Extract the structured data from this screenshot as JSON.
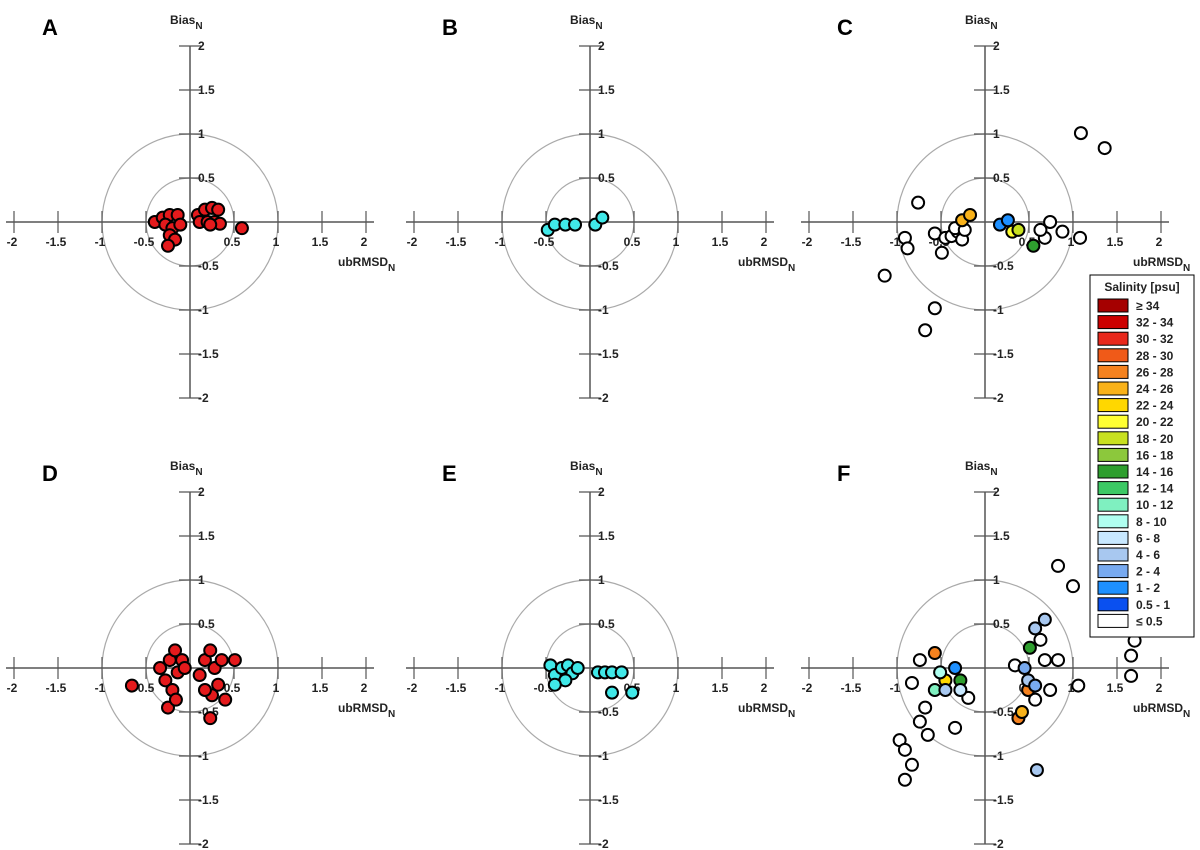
{
  "chart_data": [
    {
      "type": "scatter",
      "label": "A",
      "xlabel": "ubRMSD",
      "xlabel_sub": "N",
      "ylabel": "Bias",
      "ylabel_sub": "N",
      "xlim": [
        -2,
        2
      ],
      "ylim": [
        -2,
        2
      ],
      "xticks": [
        -2,
        -1.5,
        -1,
        -0.5,
        0.5,
        1,
        1.5,
        2
      ],
      "yticks": [
        2,
        1.5,
        1,
        0.5,
        -0.5,
        -1,
        -1.5,
        -2
      ],
      "circles": [
        0.5,
        1
      ],
      "series": [
        {
          "color": "#e41a1c",
          "x": [
            -0.4,
            -0.31,
            -0.23,
            -0.14,
            -0.28,
            -0.2,
            -0.11,
            -0.23,
            -0.17,
            -0.25,
            0.09,
            0.17,
            0.25,
            0.32,
            0.11,
            0.2,
            0.28,
            0.34,
            0.23,
            0.59
          ],
          "y": [
            0,
            0.05,
            0.08,
            0.08,
            -0.03,
            -0.07,
            -0.03,
            -0.15,
            -0.2,
            -0.27,
            0.08,
            0.14,
            0.16,
            0.14,
            0,
            0,
            0,
            -0.02,
            -0.03,
            -0.07
          ]
        }
      ]
    },
    {
      "type": "scatter",
      "label": "B",
      "xlabel": "ubRMSD",
      "xlabel_sub": "N",
      "ylabel": "Bias",
      "ylabel_sub": "N",
      "xlim": [
        -2,
        2
      ],
      "ylim": [
        -2,
        2
      ],
      "xticks": [
        -2,
        -1.5,
        -1,
        -0.5,
        0.5,
        1,
        1.5,
        2
      ],
      "yticks": [
        2,
        1.5,
        1,
        0.5,
        -0.5,
        -1,
        -1.5,
        -2
      ],
      "circles": [
        0.5,
        1
      ],
      "series": [
        {
          "color": "#40e8e8",
          "x": [
            -0.48,
            -0.4,
            -0.28,
            -0.17,
            0.06,
            0.14
          ],
          "y": [
            -0.09,
            -0.03,
            -0.03,
            -0.03,
            -0.03,
            0.05
          ]
        }
      ]
    },
    {
      "type": "scatter",
      "label": "C",
      "xlabel": "ubRMSD",
      "xlabel_sub": "N",
      "ylabel": "Bias",
      "ylabel_sub": "N",
      "xlim": [
        -2,
        2
      ],
      "ylim": [
        -2,
        2
      ],
      "xticks": [
        -2,
        -1.5,
        -1,
        -0.5,
        0.5,
        1,
        1.5,
        2
      ],
      "yticks": [
        2,
        1.5,
        1,
        0.5,
        -0.5,
        -1,
        -1.5,
        -2
      ],
      "circles": [
        0.5,
        1
      ],
      "series": [
        {
          "color": "#ffffff",
          "x": [
            1.09,
            1.36,
            -0.76,
            -0.91,
            -0.88,
            -1.14,
            -0.57,
            -0.68,
            -0.49,
            -0.57,
            -0.45,
            -0.38,
            -0.31,
            -0.26,
            -0.34,
            -0.23,
            0.74,
            0.88,
            0.68,
            1.08,
            0.63
          ],
          "y": [
            1.01,
            0.84,
            0.22,
            -0.18,
            -0.3,
            -0.61,
            -0.98,
            -1.23,
            -0.35,
            -0.13,
            -0.18,
            -0.16,
            -0.11,
            -0.2,
            -0.07,
            -0.09,
            0,
            -0.11,
            -0.18,
            -0.18,
            -0.09
          ]
        },
        {
          "color": "#f9b21a",
          "x": [
            -0.26,
            -0.17
          ],
          "y": [
            0.02,
            0.08
          ]
        },
        {
          "color": "#1e90ff",
          "x": [
            0.17,
            0.26
          ],
          "y": [
            -0.03,
            0.02
          ]
        },
        {
          "color": "#ffff33",
          "x": [
            0.31
          ],
          "y": [
            -0.11
          ]
        },
        {
          "color": "#c8e020",
          "x": [
            0.38
          ],
          "y": [
            -0.09
          ]
        },
        {
          "color": "#2e9e2e",
          "x": [
            0.55
          ],
          "y": [
            -0.27
          ]
        }
      ]
    },
    {
      "type": "scatter",
      "label": "D",
      "xlabel": "ubRMSD",
      "xlabel_sub": "N",
      "ylabel": "Bias",
      "ylabel_sub": "N",
      "xlim": [
        -2,
        2
      ],
      "ylim": [
        -2,
        2
      ],
      "xticks": [
        -2,
        -1.5,
        -1,
        -0.5,
        0.5,
        1,
        1.5,
        2
      ],
      "yticks": [
        2,
        1.5,
        1,
        0.5,
        -0.5,
        -1,
        -1.5,
        -2
      ],
      "circles": [
        0.5,
        1
      ],
      "series": [
        {
          "color": "#e41a1c",
          "x": [
            -0.66,
            -0.34,
            -0.28,
            -0.23,
            -0.2,
            -0.25,
            -0.17,
            -0.14,
            -0.09,
            -0.16,
            -0.06,
            0.11,
            0.17,
            0.23,
            0.28,
            0.32,
            0.25,
            0.36,
            0.4,
            0.51,
            0.23,
            0.17
          ],
          "y": [
            -0.2,
            0,
            -0.14,
            0.09,
            -0.25,
            -0.45,
            0.2,
            -0.05,
            0.09,
            -0.36,
            0,
            -0.08,
            0.09,
            0.2,
            0,
            -0.19,
            -0.31,
            0.09,
            -0.36,
            0.09,
            -0.57,
            -0.25
          ]
        }
      ]
    },
    {
      "type": "scatter",
      "label": "E",
      "xlabel": "ubRMSD",
      "xlabel_sub": "N",
      "ylabel": "Bias",
      "ylabel_sub": "N",
      "xlim": [
        -2,
        2
      ],
      "ylim": [
        -2,
        2
      ],
      "xticks": [
        -2,
        -1.5,
        -1,
        -0.5,
        0.5,
        1,
        1.5,
        2
      ],
      "yticks": [
        2,
        1.5,
        1,
        0.5,
        -0.5,
        -1,
        -1.5,
        -2
      ],
      "circles": [
        0.5,
        1
      ],
      "series": [
        {
          "color": "#40e8e8",
          "x": [
            -0.45,
            -0.4,
            -0.32,
            -0.25,
            -0.2,
            -0.14,
            -0.28,
            0.09,
            0.17,
            0.25,
            0.36,
            0.25,
            0.48,
            -0.4
          ],
          "y": [
            0.03,
            -0.08,
            0,
            0.03,
            -0.06,
            0,
            -0.14,
            -0.05,
            -0.05,
            -0.05,
            -0.05,
            -0.28,
            -0.28,
            -0.19
          ]
        }
      ]
    },
    {
      "type": "scatter",
      "label": "F",
      "xlabel": "ubRMSD",
      "xlabel_sub": "N",
      "ylabel": "Bias",
      "ylabel_sub": "N",
      "xlim": [
        -2,
        2
      ],
      "ylim": [
        -2,
        2
      ],
      "xticks": [
        -2,
        -1.5,
        -1,
        -0.5,
        0.5,
        1,
        1.5,
        2
      ],
      "yticks": [
        2,
        1.5,
        1,
        0.5,
        -0.5,
        -1,
        -1.5,
        -2
      ],
      "circles": [
        0.5,
        1
      ],
      "series": [
        {
          "color": "#ffffff",
          "x": [
            0.83,
            1.0,
            1.7,
            1.66,
            1.66,
            1.06,
            -0.74,
            -0.83,
            -0.68,
            -0.74,
            -0.65,
            -0.97,
            -0.91,
            -0.83,
            -0.91,
            -0.34,
            -0.19,
            0.63,
            0.68,
            0.74,
            0.83,
            0.34,
            0.57
          ],
          "y": [
            1.16,
            0.93,
            0.31,
            0.14,
            -0.09,
            -0.2,
            0.09,
            -0.17,
            -0.45,
            -0.61,
            -0.76,
            -0.82,
            -0.93,
            -1.1,
            -1.27,
            -0.68,
            -0.34,
            0.32,
            0.09,
            -0.25,
            0.09,
            0.03,
            -0.36
          ]
        },
        {
          "color": "#f5821f",
          "x": [
            -0.57,
            0.49,
            0.38
          ],
          "y": [
            0.17,
            -0.25,
            -0.57
          ]
        },
        {
          "color": "#f9b21a",
          "x": [
            0.42
          ],
          "y": [
            -0.5
          ]
        },
        {
          "color": "#ffd700",
          "x": [
            -0.45
          ],
          "y": [
            -0.14
          ]
        },
        {
          "color": "#2e9e2e",
          "x": [
            0.51,
            -0.28
          ],
          "y": [
            0.23,
            -0.14
          ]
        },
        {
          "color": "#7ff0c0",
          "x": [
            -0.57
          ],
          "y": [
            -0.25
          ]
        },
        {
          "color": "#b0fff0",
          "x": [
            -0.51
          ],
          "y": [
            -0.05
          ]
        },
        {
          "color": "#c8e8ff",
          "x": [
            -0.28
          ],
          "y": [
            -0.25
          ]
        },
        {
          "color": "#a8c8f0",
          "x": [
            0.57,
            0.68,
            -0.45,
            0.49,
            0.59
          ],
          "y": [
            0.45,
            0.55,
            -0.25,
            -0.14,
            -1.16
          ]
        },
        {
          "color": "#78aaf0",
          "x": [
            0.45,
            0.57
          ],
          "y": [
            0,
            -0.2
          ]
        },
        {
          "color": "#1e90ff",
          "x": [
            -0.34
          ],
          "y": [
            0
          ]
        }
      ]
    }
  ],
  "legend": {
    "title": "Salinity [psu]",
    "entries": [
      {
        "label": "≥ 34",
        "color": "#a50000"
      },
      {
        "label": "32 - 34",
        "color": "#cc0000"
      },
      {
        "label": "30 - 32",
        "color": "#e8281c"
      },
      {
        "label": "28 - 30",
        "color": "#f05a18"
      },
      {
        "label": "26 - 28",
        "color": "#f5821f"
      },
      {
        "label": "24 - 26",
        "color": "#f9b21a"
      },
      {
        "label": "22 - 24",
        "color": "#ffd700"
      },
      {
        "label": "20 - 22",
        "color": "#ffff33"
      },
      {
        "label": "18 - 20",
        "color": "#c8e020"
      },
      {
        "label": "16 - 18",
        "color": "#8cc83c"
      },
      {
        "label": "14 - 16",
        "color": "#2e9e2e"
      },
      {
        "label": "12 - 14",
        "color": "#3cc864"
      },
      {
        "label": "10 - 12",
        "color": "#7ff0c0"
      },
      {
        "label": "8 - 10",
        "color": "#b0fff0"
      },
      {
        "label": "6 - 8",
        "color": "#c8e8ff"
      },
      {
        "label": "4 - 6",
        "color": "#a8c8f0"
      },
      {
        "label": "2 - 4",
        "color": "#78aaf0"
      },
      {
        "label": "1 - 2",
        "color": "#1e90ff"
      },
      {
        "label": "0.5 - 1",
        "color": "#0a50f0"
      },
      {
        "label": "≤ 0.5",
        "color": "#ffffff"
      }
    ]
  }
}
